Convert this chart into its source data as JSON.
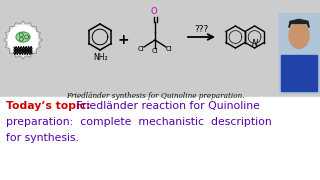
{
  "bg_color": "#f5f5f5",
  "top_bg_color": "#d8d8d8",
  "bottom_bg_color": "#ffffff",
  "subtitle_text": "Friedländer synthesis for Quinoline preparation.",
  "subtitle_color": "#111111",
  "subtitle_fontsize": 5.2,
  "today_label": "Today’s topic:",
  "today_color": "#cc0000",
  "today_fontsize": 7.8,
  "body_line1": " Friedländer reaction for Quinoline",
  "body_line2": "preparation:  complete  mechanistic  description",
  "body_line3": "for synthesis.",
  "body_color": "#5500aa",
  "body_fontsize": 7.8,
  "reaction_arrow_text": "???",
  "plus_sign": "+",
  "aniline_nh2": "NH₂",
  "O_color": "#cc00aa",
  "quinoline_N_label": "N",
  "photo_bg": "#8899bb"
}
